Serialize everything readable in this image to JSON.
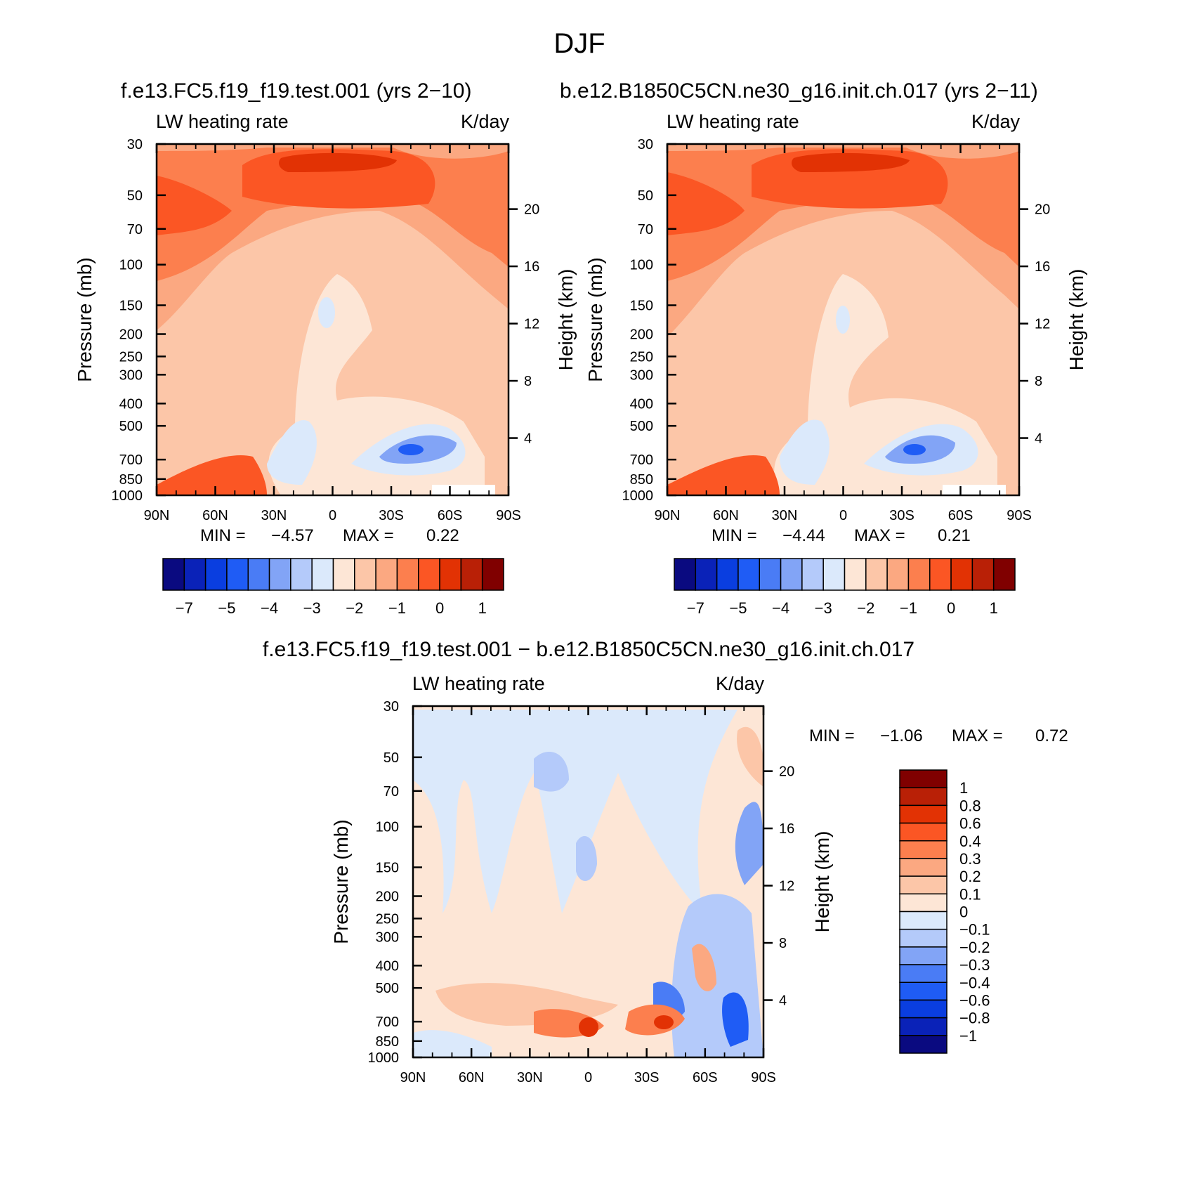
{
  "figure": {
    "title": "DJF",
    "panel1_title": "f.e13.FC5.f19_f19.test.001 (yrs 2−10)",
    "panel2_title": "b.e12.B1850C5CN.ne30_g16.init.ch.017 (yrs 2−11)",
    "diff_title": "f.e13.FC5.f19_f19.test.001 − b.e12.B1850C5CN.ne30_g16.init.ch.017"
  },
  "chart_data": [
    {
      "type": "heatmap",
      "left_label": "LW heating rate",
      "right_label": "K/day",
      "ylabel": "Pressure (mb)",
      "y2label": "Height (km)",
      "x_ticks": [
        "90N",
        "60N",
        "30N",
        "0",
        "30S",
        "60S",
        "90S"
      ],
      "y_ticks": [
        "30",
        "50",
        "70",
        "100",
        "150",
        "200",
        "250",
        "300",
        "400",
        "500",
        "700",
        "850",
        "1000"
      ],
      "y2_ticks": [
        "20",
        "16",
        "12",
        "8",
        "4"
      ],
      "min_label": "MIN =",
      "min_value": "−4.57",
      "max_label": "MAX =",
      "max_value": "0.22",
      "colorbar_labels": [
        "−7",
        "−5",
        "−4",
        "−3",
        "−2",
        "−1",
        "0",
        "1"
      ]
    },
    {
      "type": "heatmap",
      "left_label": "LW heating rate",
      "right_label": "K/day",
      "ylabel": "Pressure (mb)",
      "y2label": "Height (km)",
      "x_ticks": [
        "90N",
        "60N",
        "30N",
        "0",
        "30S",
        "60S",
        "90S"
      ],
      "y_ticks": [
        "30",
        "50",
        "70",
        "100",
        "150",
        "200",
        "250",
        "300",
        "400",
        "500",
        "700",
        "850",
        "1000"
      ],
      "y2_ticks": [
        "20",
        "16",
        "12",
        "8",
        "4"
      ],
      "min_label": "MIN =",
      "min_value": "−4.44",
      "max_label": "MAX =",
      "max_value": "0.21",
      "colorbar_labels": [
        "−7",
        "−5",
        "−4",
        "−3",
        "−2",
        "−1",
        "0",
        "1"
      ]
    },
    {
      "type": "heatmap",
      "left_label": "LW heating rate",
      "right_label": "K/day",
      "ylabel": "Pressure (mb)",
      "y2label": "Height (km)",
      "x_ticks": [
        "90N",
        "60N",
        "30N",
        "0",
        "30S",
        "60S",
        "90S"
      ],
      "y_ticks": [
        "30",
        "50",
        "70",
        "100",
        "150",
        "200",
        "250",
        "300",
        "400",
        "500",
        "700",
        "850",
        "1000"
      ],
      "y2_ticks": [
        "20",
        "16",
        "12",
        "8",
        "4"
      ],
      "min_label": "MIN =",
      "min_value": "−1.06",
      "max_label": "MAX =",
      "max_value": "0.72",
      "colorbar_labels": [
        "1",
        "0.8",
        "0.6",
        "0.4",
        "0.3",
        "0.2",
        "0.1",
        "0",
        "−0.1",
        "−0.2",
        "−0.3",
        "−0.4",
        "−0.6",
        "−0.8",
        "−1"
      ]
    }
  ],
  "colors": {
    "palette": [
      "#0a0a80",
      "#0a22b8",
      "#0a3ee0",
      "#1f5cf5",
      "#4a7cf5",
      "#82a4f6",
      "#b4cafa",
      "#dbe9fb",
      "#fde6d6",
      "#fcc6a8",
      "#fba881",
      "#fc7f4e",
      "#fb5624",
      "#e23204",
      "#b92006",
      "#800000"
    ],
    "diff_palette": [
      "#0a0a80",
      "#0a22b8",
      "#0a3ee0",
      "#1f5cf5",
      "#4a7cf5",
      "#82a4f6",
      "#b4cafa",
      "#dbe9fb",
      "#fde6d6",
      "#fcc6a8",
      "#fba881",
      "#fc7f4e",
      "#fb5624",
      "#e23204",
      "#b92006",
      "#800000"
    ]
  }
}
